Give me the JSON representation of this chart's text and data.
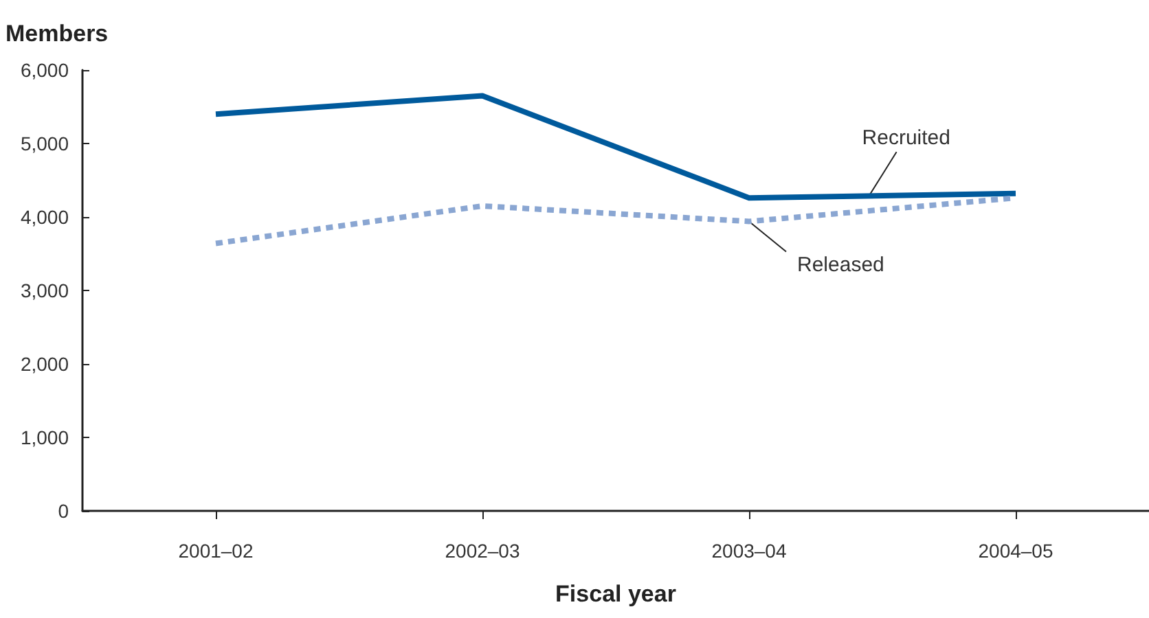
{
  "chart_data": {
    "type": "line",
    "ylabel": "Members",
    "xlabel": "Fiscal year",
    "categories": [
      "2001–02",
      "2002–03",
      "2003–04",
      "2004–05"
    ],
    "series": [
      {
        "name": "Recruited",
        "color": "#005a9c",
        "line_style": "solid",
        "values": [
          5400,
          5650,
          4260,
          4320
        ]
      },
      {
        "name": "Released",
        "color": "#8aa6d2",
        "line_style": "dashed",
        "values": [
          3640,
          4150,
          3940,
          4260
        ]
      }
    ],
    "ylim": [
      0,
      6000
    ],
    "yticks": [
      0,
      {
        "value": 1000,
        "label": "1,000"
      },
      {
        "value": 2000,
        "label": "2,000"
      },
      {
        "value": 3000,
        "label": "3,000"
      },
      {
        "value": 4000,
        "label": "4,000"
      },
      {
        "value": 5000,
        "label": "5,000"
      },
      {
        "value": 6000,
        "label": "6,000"
      }
    ],
    "grid": false,
    "legend": false,
    "marker": "none"
  }
}
